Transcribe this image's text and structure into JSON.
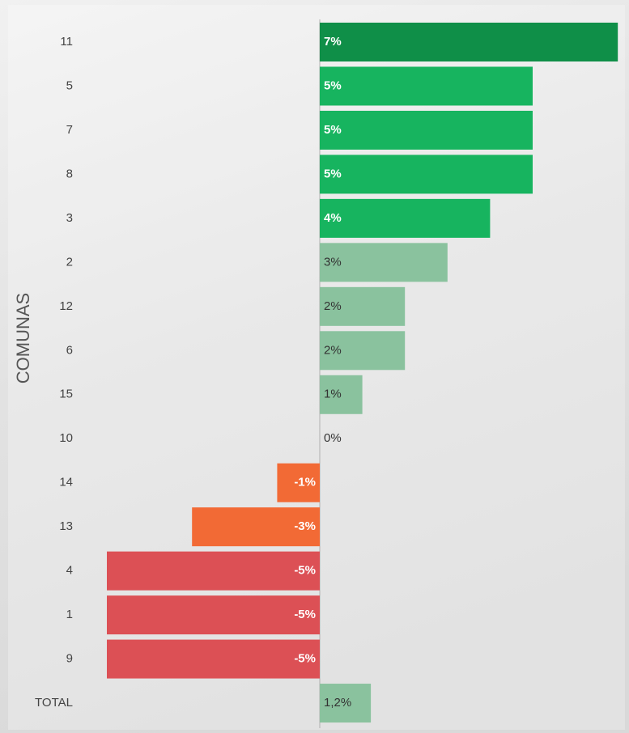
{
  "chart_data": {
    "type": "bar",
    "orientation": "horizontal",
    "y_label": "COMUNAS",
    "categories": [
      "11",
      "5",
      "7",
      "8",
      "3",
      "2",
      "12",
      "6",
      "15",
      "10",
      "14",
      "13",
      "4",
      "1",
      "9",
      "TOTAL"
    ],
    "values": [
      7,
      5,
      5,
      5,
      4,
      3,
      2,
      2,
      1,
      0,
      -1,
      -3,
      -5,
      -5,
      -5,
      1.2
    ],
    "value_labels": [
      "7%",
      "5%",
      "5%",
      "5%",
      "4%",
      "3%",
      "2%",
      "2%",
      "1%",
      "0%",
      "-1%",
      "-3%",
      "-5%",
      "-5%",
      "-5%",
      "1,2%"
    ],
    "colors": [
      "#0f8f48",
      "#17b45f",
      "#17b45f",
      "#17b45f",
      "#17b45f",
      "#8ac29e",
      "#8ac29e",
      "#8ac29e",
      "#8ac29e",
      "#8ac29e",
      "#f26a35",
      "#f26a35",
      "#dc5055",
      "#dc5055",
      "#dc5055",
      "#8ac29e"
    ]
  }
}
